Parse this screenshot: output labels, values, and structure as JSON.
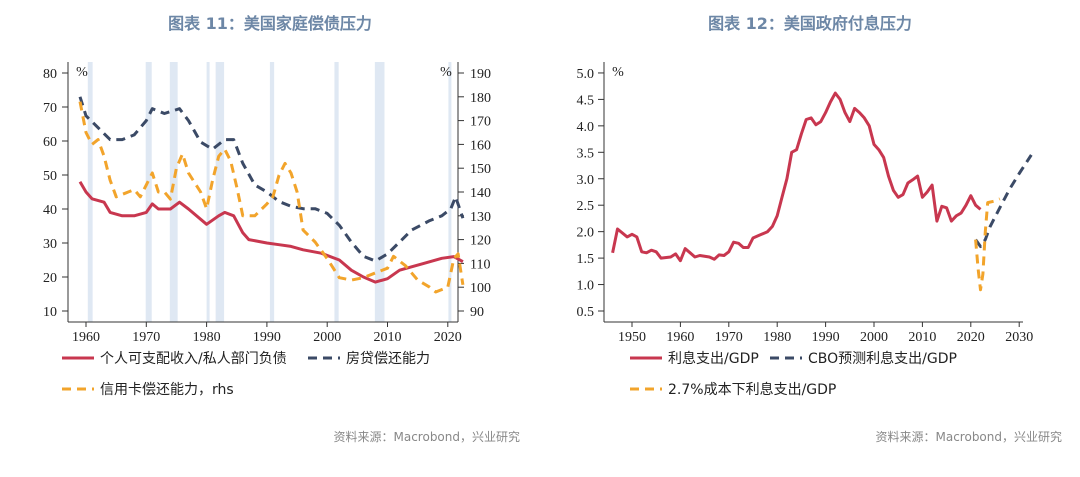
{
  "chart_data": [
    {
      "type": "line",
      "title": "图表 11：美国家庭偿债压力",
      "unit_left": "%",
      "unit_right": "%",
      "ylim_left": [
        10,
        80
      ],
      "yticks_left": [
        10,
        20,
        30,
        40,
        50,
        60,
        70,
        80
      ],
      "ylim_right": [
        90,
        190
      ],
      "yticks_right": [
        90,
        100,
        110,
        120,
        130,
        140,
        150,
        160,
        170,
        180,
        190
      ],
      "xticks": [
        1960,
        1970,
        1980,
        1990,
        2000,
        2010,
        2020
      ],
      "recessions": [
        [
          1960.3,
          1961.1
        ],
        [
          1969.9,
          1970.9
        ],
        [
          1973.9,
          1975.2
        ],
        [
          1980.0,
          1980.5
        ],
        [
          1981.5,
          1982.9
        ],
        [
          1990.5,
          1991.2
        ],
        [
          2001.2,
          2001.9
        ],
        [
          2007.9,
          2009.5
        ],
        [
          2020.1,
          2020.4
        ]
      ],
      "series": [
        {
          "name": "个人可支配收入/私人部门负债",
          "axis": "left",
          "color": "#c8374f",
          "dash": false,
          "x": [
            1959,
            1960,
            1961,
            1963,
            1964,
            1966,
            1968,
            1970,
            1971,
            1972,
            1974,
            1975.5,
            1977,
            1980,
            1982,
            1983,
            1984.5,
            1986,
            1987,
            1990,
            1992,
            1994,
            1996,
            1999,
            2002,
            2004,
            2006,
            2008,
            2010,
            2012,
            2014,
            2016,
            2019,
            2021,
            2022.5
          ],
          "y": [
            48,
            45,
            43,
            42,
            39,
            38,
            38,
            39,
            41.5,
            40,
            40,
            42,
            40,
            35.5,
            38,
            39,
            38,
            33,
            31,
            30,
            29.5,
            29,
            28,
            27,
            25,
            22,
            20,
            18.5,
            19.5,
            22,
            23,
            24,
            25.5,
            26,
            24.5
          ]
        },
        {
          "name": "房贷偿还能力",
          "axis": "right",
          "color": "#3b4a66",
          "dash": true,
          "x": [
            1959,
            1960,
            1962,
            1964,
            1966,
            1968,
            1970,
            1971,
            1973,
            1975.5,
            1977,
            1979,
            1981,
            1983,
            1984.5,
            1986,
            1988,
            1990,
            1992,
            1994,
            1996,
            1998,
            2000,
            2002,
            2004,
            2006,
            2008,
            2010,
            2012,
            2014,
            2017,
            2019,
            2020.5,
            2021.3,
            2022.5
          ],
          "y": [
            180,
            172,
            167,
            162,
            162,
            164,
            170,
            175,
            173,
            175,
            170,
            161,
            158,
            162,
            162,
            152,
            143,
            140,
            136,
            134,
            133,
            133,
            131,
            126,
            119,
            113,
            111,
            114,
            119,
            124,
            128,
            130,
            133,
            138,
            129
          ]
        },
        {
          "name": "信用卡偿还能力，rhs",
          "axis": "right",
          "color": "#f2a42b",
          "dash": true,
          "x": [
            1959,
            1960,
            1961,
            1962,
            1963,
            1964,
            1965,
            1967,
            1968,
            1969,
            1970,
            1971,
            1972,
            1973,
            1974,
            1975,
            1976,
            1977,
            1979,
            1980,
            1981,
            1982,
            1983,
            1984,
            1985,
            1986,
            1988,
            1990,
            1991,
            1992,
            1993,
            1994,
            1995,
            1996,
            1998,
            2000,
            2002,
            2004,
            2006,
            2008,
            2010,
            2011,
            2013,
            2015,
            2017,
            2018,
            2020,
            2021,
            2021.7,
            2022.5
          ],
          "y": [
            178,
            165,
            160,
            162,
            155,
            145,
            138,
            140,
            141,
            138,
            143,
            148,
            140,
            140,
            137,
            150,
            156,
            148,
            140,
            133,
            145,
            155,
            158,
            153,
            142,
            130,
            130,
            135,
            138,
            147,
            152,
            148,
            140,
            124,
            119,
            112,
            104,
            103,
            104,
            106,
            108,
            113,
            109,
            103,
            100,
            98,
            100,
            112,
            114,
            101
          ]
        }
      ],
      "legend": "bottom",
      "source": "资料来源：Macrobond，兴业研究"
    },
    {
      "type": "line",
      "title": "图表 12：美国政府付息压力",
      "unit": "%",
      "ylim": [
        0.5,
        5.0
      ],
      "yticks": [
        "0.5",
        "1.0",
        "1.5",
        "2.0",
        "2.5",
        "3.0",
        "3.5",
        "4.0",
        "4.5",
        "5.0"
      ],
      "xticks": [
        1950,
        1960,
        1970,
        1980,
        1990,
        2000,
        2010,
        2020,
        2030
      ],
      "series": [
        {
          "name": "利息支出/GDP",
          "color": "#c8374f",
          "dash": false,
          "x": [
            1946,
            1947,
            1949,
            1950,
            1951,
            1952,
            1953,
            1954,
            1955,
            1956,
            1958,
            1959,
            1960,
            1961,
            1962,
            1963,
            1964,
            1966,
            1967,
            1968,
            1969,
            1970,
            1971,
            1972,
            1973,
            1974,
            1975,
            1976,
            1978,
            1979,
            1980,
            1981,
            1982,
            1983,
            1984,
            1985,
            1986,
            1987,
            1988,
            1989,
            1990,
            1991,
            1992,
            1993,
            1994,
            1995,
            1996,
            1997,
            1998,
            1999,
            2000,
            2001,
            2002,
            2003,
            2004,
            2005,
            2006,
            2007,
            2008,
            2009,
            2010,
            2011,
            2012,
            2013,
            2014,
            2015,
            2016,
            2017,
            2018,
            2019,
            2020,
            2021,
            2022
          ],
          "y": [
            1.6,
            2.05,
            1.9,
            1.95,
            1.9,
            1.62,
            1.6,
            1.65,
            1.62,
            1.5,
            1.52,
            1.58,
            1.45,
            1.68,
            1.6,
            1.52,
            1.55,
            1.52,
            1.48,
            1.56,
            1.55,
            1.62,
            1.8,
            1.78,
            1.7,
            1.7,
            1.88,
            1.92,
            2.0,
            2.1,
            2.3,
            2.65,
            3.0,
            3.5,
            3.55,
            3.85,
            4.12,
            4.15,
            4.02,
            4.08,
            4.25,
            4.45,
            4.62,
            4.5,
            4.25,
            4.08,
            4.33,
            4.25,
            4.15,
            4.0,
            3.65,
            3.55,
            3.4,
            3.05,
            2.78,
            2.65,
            2.7,
            2.92,
            2.98,
            3.05,
            2.65,
            2.75,
            2.88,
            2.2,
            2.48,
            2.45,
            2.2,
            2.3,
            2.35,
            2.5,
            2.68,
            2.5,
            2.42
          ]
        },
        {
          "name": "CBO预测利息支出/GDP",
          "color": "#3b4a66",
          "dash": true,
          "x": [
            2021,
            2022,
            2023,
            2024,
            2026,
            2028,
            2030,
            2032.5
          ],
          "y": [
            1.85,
            1.72,
            1.85,
            2.1,
            2.45,
            2.8,
            3.1,
            3.45
          ]
        },
        {
          "name": "2.7%成本下利息支出/GDP",
          "color": "#f2a42b",
          "dash": true,
          "x": [
            2021,
            2021.5,
            2022,
            2022.5,
            2023,
            2023.5,
            2025,
            2026
          ],
          "y": [
            1.85,
            1.3,
            0.9,
            1.2,
            2.0,
            2.55,
            2.58,
            2.62
          ]
        }
      ],
      "legend": "bottom",
      "source": "资料来源：Macrobond，兴业研究"
    }
  ]
}
